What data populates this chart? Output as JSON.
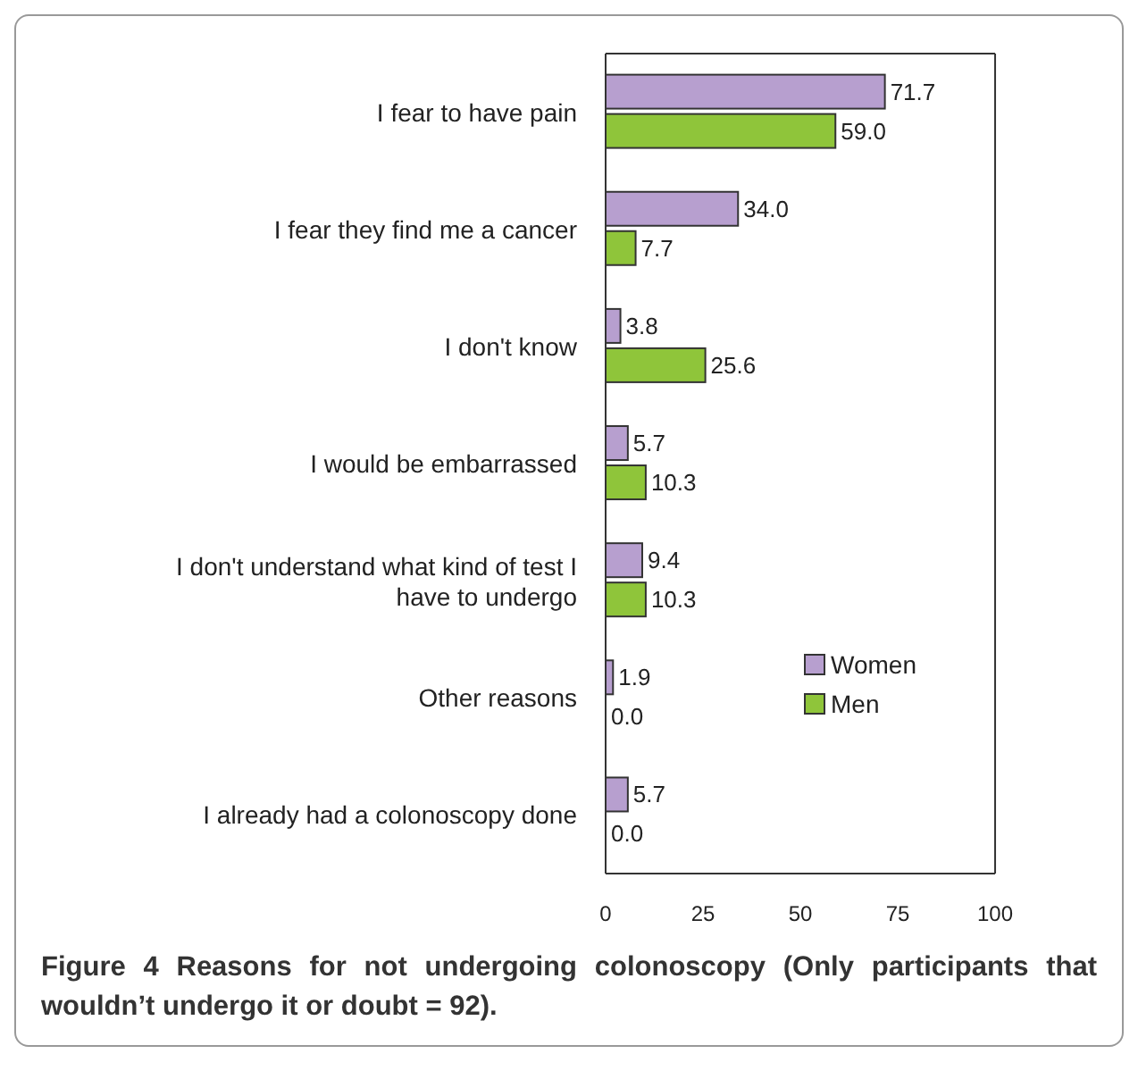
{
  "chart_data": {
    "type": "bar",
    "orientation": "horizontal",
    "title": "Figure 4 Reasons for not undergoing colonoscopy (Only participants that wouldn’t undergo it or doubt = 92).",
    "categories": [
      "I fear to have pain",
      "I fear they find me a cancer",
      "I don't know",
      "I would be embarrassed",
      "I don't understand what kind of test I have to undergo",
      "Other reasons",
      "I already had a colonoscopy done"
    ],
    "series": [
      {
        "name": "Women",
        "color": "#b79fcf",
        "values": [
          71.7,
          34.0,
          3.8,
          5.7,
          9.4,
          1.9,
          5.7
        ],
        "value_labels": [
          "71.7",
          "34.0",
          "3.8",
          "5.7",
          "9.4",
          "1.9",
          "5.7"
        ]
      },
      {
        "name": "Men",
        "color": "#8fc53a",
        "values": [
          59.0,
          7.7,
          25.6,
          10.3,
          10.3,
          0.0,
          0.0
        ],
        "value_labels": [
          "59.0",
          "7.7",
          "25.6",
          "10.3",
          "10.3",
          "0.0",
          "0.0"
        ]
      }
    ],
    "xlim": [
      0,
      100
    ],
    "xticks": [
      0,
      25,
      50,
      75,
      100
    ],
    "grid": false,
    "legend": "right"
  }
}
